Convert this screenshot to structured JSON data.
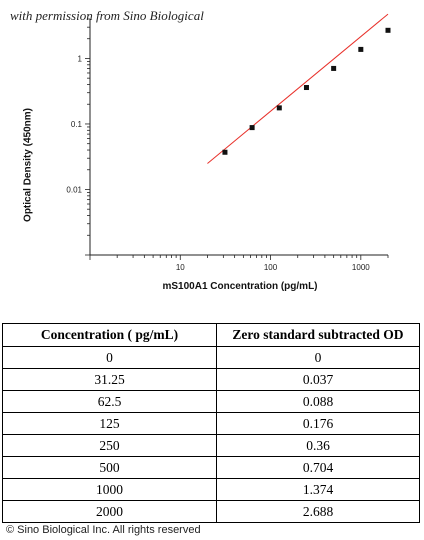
{
  "header": {
    "permission_note": "with permission from Sino Biological"
  },
  "chart_data": {
    "type": "scatter",
    "xlabel": "mS100A1 Concentration (pg/mL)",
    "ylabel": "Optical Density (450nm)",
    "x_scale": "log",
    "y_scale": "log",
    "xlim": [
      1,
      2000
    ],
    "ylim": [
      0.001,
      4
    ],
    "x_tick_labels": [
      "10",
      "100",
      "1000"
    ],
    "y_tick_labels": [
      "0.01",
      "0.1",
      "1"
    ],
    "grid": false,
    "points": [
      {
        "x": 31.25,
        "y": 0.037
      },
      {
        "x": 62.5,
        "y": 0.088
      },
      {
        "x": 125,
        "y": 0.176
      },
      {
        "x": 250,
        "y": 0.36
      },
      {
        "x": 500,
        "y": 0.704
      },
      {
        "x": 1000,
        "y": 1.374
      },
      {
        "x": 2000,
        "y": 2.688
      }
    ],
    "fit_line": {
      "x_start": 20,
      "x_end": 2000,
      "slope": 1.14,
      "intercept_at_x1": 0.00082
    },
    "colors": {
      "points": "#111111",
      "fit": "#e8302a",
      "axis": "#222222"
    }
  },
  "table": {
    "headers": [
      "Concentration ( pg/mL)",
      "Zero standard subtracted OD"
    ],
    "rows": [
      [
        "0",
        "0"
      ],
      [
        "31.25",
        "0.037"
      ],
      [
        "62.5",
        "0.088"
      ],
      [
        "125",
        "0.176"
      ],
      [
        "250",
        "0.36"
      ],
      [
        "500",
        "0.704"
      ],
      [
        "1000",
        "1.374"
      ],
      [
        "2000",
        "2.688"
      ]
    ]
  },
  "footer": {
    "copyright": "© Sino Biological Inc. All rights reserved"
  }
}
